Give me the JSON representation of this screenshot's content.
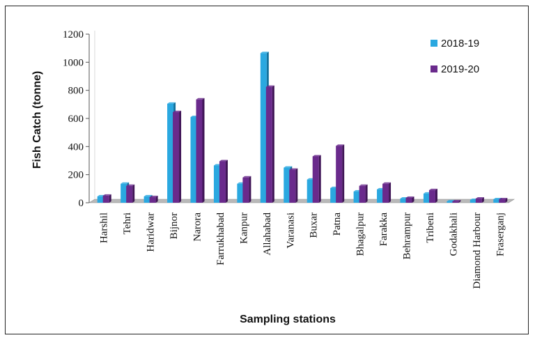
{
  "colors": {
    "series_2018": "#2aa8e0",
    "series_2018_side": "#13719c",
    "series_2019": "#6a2a8c",
    "series_2019_side": "#3f1456",
    "axis": "#555555",
    "floor": "#b9b9b9"
  },
  "chart_data": {
    "type": "bar",
    "title": "",
    "xlabel": "Sampling stations",
    "ylabel": "Fish Catch (tonne)",
    "ylim": [
      0,
      1200
    ],
    "yticks": [
      0,
      200,
      400,
      600,
      800,
      1000,
      1200
    ],
    "grid": false,
    "legend_position": "top-right",
    "categories": [
      "Harshil",
      "Tehri",
      "Haridwar",
      "Bijnor",
      "Narora",
      "Farrukhabad",
      "Kanpur",
      "Allahabad",
      "Varanasi",
      "Buxar",
      "Patna",
      "Bhagalpur",
      "Farakka",
      "Behrampur",
      "Tribeni",
      "Godakhali",
      "Diamond Harbour",
      "Fraserganj"
    ],
    "series": [
      {
        "name": "2018-19",
        "values": [
          45,
          135,
          45,
          705,
          610,
          265,
          135,
          1065,
          250,
          165,
          105,
          80,
          95,
          30,
          65,
          10,
          20,
          25
        ]
      },
      {
        "name": "2019-20",
        "values": [
          50,
          120,
          40,
          645,
          735,
          295,
          180,
          825,
          235,
          330,
          405,
          120,
          135,
          35,
          90,
          10,
          30,
          25
        ]
      }
    ]
  }
}
